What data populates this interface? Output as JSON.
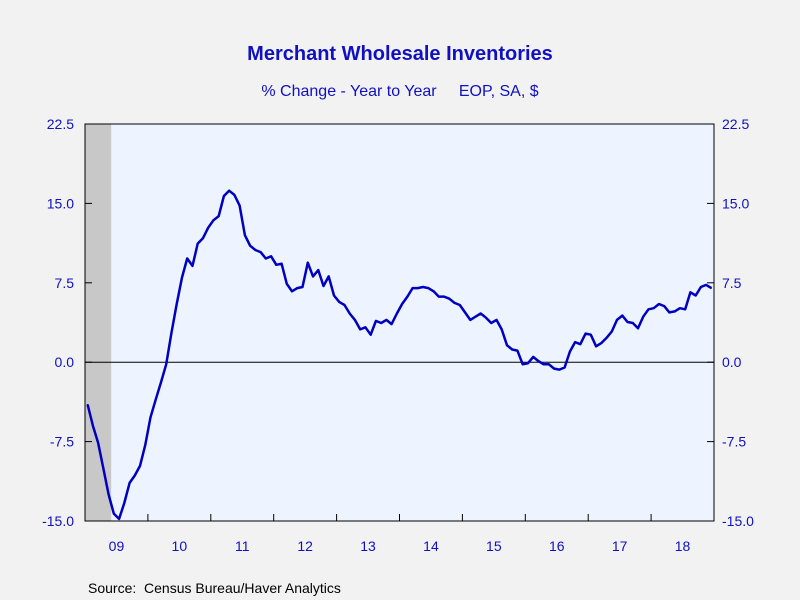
{
  "chart_data": {
    "type": "line",
    "title": "Merchant Wholesale Inventories",
    "subtitle": "% Change - Year to Year     EOP, SA, $",
    "source": "Source:  Census Bureau/Haver Analytics",
    "ylim": [
      -15.0,
      22.5
    ],
    "y_ticks": [
      22.5,
      15.0,
      7.5,
      0.0,
      -7.5,
      -15.0
    ],
    "y_tick_labels": [
      "22.5",
      "15.0",
      "7.5",
      "0.0",
      "-7.5",
      "-15.0"
    ],
    "x_tick_labels": [
      "09",
      "10",
      "11",
      "12",
      "13",
      "14",
      "15",
      "16",
      "17",
      "18"
    ],
    "x_range": [
      "2009-01",
      "2018-12"
    ],
    "recession_shading": [
      "2009-01",
      "2009-06"
    ],
    "colors": {
      "line": "#0000C0",
      "plot_bg": "#EEF4FF",
      "recession": "#C8C8C8",
      "text": "#1010C0"
    },
    "series": [
      {
        "x": [
          "2009-01",
          "2009-02",
          "2009-03",
          "2009-04",
          "2009-05",
          "2009-06",
          "2009-07",
          "2009-08",
          "2009-09",
          "2009-10",
          "2009-11",
          "2009-12",
          "2010-01",
          "2010-02",
          "2010-03",
          "2010-04",
          "2010-05",
          "2010-06",
          "2010-07",
          "2010-08",
          "2010-09",
          "2010-10",
          "2010-11",
          "2010-12",
          "2011-01",
          "2011-02",
          "2011-03",
          "2011-04",
          "2011-05",
          "2011-06",
          "2011-07",
          "2011-08",
          "2011-09",
          "2011-10",
          "2011-11",
          "2011-12",
          "2012-01",
          "2012-02",
          "2012-03",
          "2012-04",
          "2012-05",
          "2012-06",
          "2012-07",
          "2012-08",
          "2012-09",
          "2012-10",
          "2012-11",
          "2012-12",
          "2013-01",
          "2013-02",
          "2013-03",
          "2013-04",
          "2013-05",
          "2013-06",
          "2013-07",
          "2013-08",
          "2013-09",
          "2013-10",
          "2013-11",
          "2013-12",
          "2014-01",
          "2014-02",
          "2014-03",
          "2014-04",
          "2014-05",
          "2014-06",
          "2014-07",
          "2014-08",
          "2014-09",
          "2014-10",
          "2014-11",
          "2014-12",
          "2015-01",
          "2015-02",
          "2015-03",
          "2015-04",
          "2015-05",
          "2015-06",
          "2015-07",
          "2015-08",
          "2015-09",
          "2015-10",
          "2015-11",
          "2015-12",
          "2016-01",
          "2016-02",
          "2016-03",
          "2016-04",
          "2016-05",
          "2016-06",
          "2016-07",
          "2016-08",
          "2016-09",
          "2016-10",
          "2016-11",
          "2016-12",
          "2017-01",
          "2017-02",
          "2017-03",
          "2017-04",
          "2017-05",
          "2017-06",
          "2017-07",
          "2017-08",
          "2017-09",
          "2017-10",
          "2017-11",
          "2017-12",
          "2018-01",
          "2018-02",
          "2018-03",
          "2018-04",
          "2018-05",
          "2018-06",
          "2018-07",
          "2018-08",
          "2018-09",
          "2018-10",
          "2018-11",
          "2018-12"
        ],
        "values": [
          -4.0,
          -6.0,
          -7.6,
          -10.0,
          -12.5,
          -14.3,
          -14.8,
          -13.3,
          -11.4,
          -10.7,
          -9.8,
          -7.8,
          -5.2,
          -3.5,
          -1.9,
          -0.2,
          2.8,
          5.5,
          8.0,
          9.8,
          9.1,
          11.2,
          11.7,
          12.7,
          13.4,
          13.8,
          15.7,
          16.2,
          15.8,
          14.8,
          12.0,
          11.0,
          10.6,
          10.4,
          9.8,
          10.0,
          9.2,
          9.3,
          7.4,
          6.7,
          7.0,
          7.1,
          9.4,
          8.1,
          8.7,
          7.2,
          8.1,
          6.3,
          5.7,
          5.4,
          4.6,
          4.0,
          3.1,
          3.3,
          2.6,
          3.9,
          3.7,
          4.0,
          3.6,
          4.6,
          5.5,
          6.2,
          7.0,
          7.0,
          7.1,
          7.0,
          6.7,
          6.2,
          6.2,
          6.0,
          5.6,
          5.4,
          4.7,
          4.0,
          4.3,
          4.6,
          4.2,
          3.7,
          4.0,
          3.1,
          1.6,
          1.2,
          1.1,
          -0.2,
          -0.1,
          0.5,
          0.1,
          -0.2,
          -0.2,
          -0.6,
          -0.7,
          -0.5,
          1.0,
          1.9,
          1.7,
          2.7,
          2.6,
          1.5,
          1.8,
          2.3,
          2.9,
          4.0,
          4.4,
          3.8,
          3.7,
          3.2,
          4.3,
          5.0,
          5.1,
          5.5,
          5.3,
          4.7,
          4.8,
          5.1,
          5.0,
          6.6,
          6.3,
          7.1,
          7.3,
          7.0
        ]
      }
    ]
  }
}
